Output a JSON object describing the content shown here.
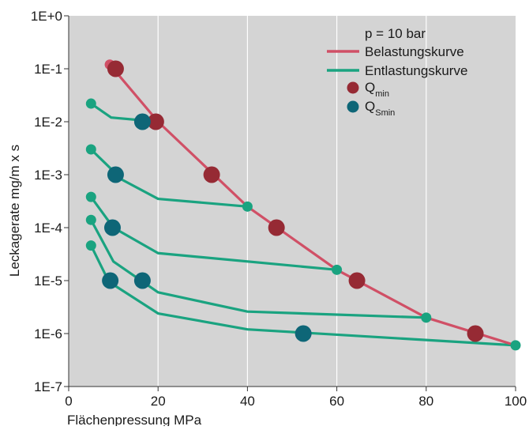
{
  "chart_data": {
    "type": "line",
    "xlabel": "Flächenpressung  MPa",
    "ylabel": "Leckagerate  mg/m x s",
    "xlim": [
      0,
      100
    ],
    "ylim_log10": [
      -7,
      0
    ],
    "y_scale": "log",
    "grid": true,
    "x_ticks": [
      "0",
      "20",
      "40",
      "60",
      "80",
      "100"
    ],
    "y_ticks": [
      "1E+0",
      "1E-1",
      "1E-2",
      "1E-3",
      "1E-4",
      "1E-5",
      "1E-6",
      "1E-7"
    ],
    "legend": {
      "placement": "top-right",
      "header": "p = 10 bar",
      "items": [
        {
          "label": "Belastungskurve",
          "kind": "line",
          "color": "#d05066"
        },
        {
          "label": "Entlastungskurve",
          "kind": "line",
          "color": "#1aa380"
        },
        {
          "label": "Q",
          "sub": "min",
          "kind": "dot",
          "color": "#962a34"
        },
        {
          "label": "Q",
          "sub": "Smin",
          "kind": "dot",
          "color": "#0e6677"
        }
      ]
    },
    "colors": {
      "belastung": "#d05066",
      "entlastung": "#1aa380",
      "qmin": "#962a34",
      "qsmin": "#0e6677",
      "plot_bg": "#d4d4d4",
      "grid": "#ffffff"
    },
    "loading_curve": {
      "name": "Belastungskurve",
      "points": [
        [
          9.2,
          0.12
        ],
        [
          20,
          0.01
        ],
        [
          40,
          0.00025
        ],
        [
          60,
          1.6e-05
        ],
        [
          80,
          2e-06
        ],
        [
          100,
          6e-07
        ]
      ]
    },
    "unloading_curves": [
      {
        "points": [
          [
            5,
            0.022
          ],
          [
            9.5,
            0.012
          ],
          [
            20,
            0.01
          ]
        ]
      },
      {
        "points": [
          [
            5,
            0.003
          ],
          [
            12,
            0.0008
          ],
          [
            20,
            0.00035
          ],
          [
            40,
            0.00025
          ]
        ]
      },
      {
        "points": [
          [
            5,
            0.00038
          ],
          [
            10,
            0.0001
          ],
          [
            20,
            3.3e-05
          ],
          [
            60,
            1.6e-05
          ]
        ]
      },
      {
        "points": [
          [
            5,
            0.00014
          ],
          [
            10,
            2.3e-05
          ],
          [
            20,
            6e-06
          ],
          [
            40,
            2.6e-06
          ],
          [
            80,
            2e-06
          ]
        ]
      },
      {
        "points": [
          [
            5,
            4.6e-05
          ],
          [
            9,
            9.5e-06
          ],
          [
            20,
            2.4e-06
          ],
          [
            40,
            1.2e-06
          ],
          [
            100,
            6e-07
          ]
        ]
      }
    ],
    "series_markers": [
      {
        "x": 9.2,
        "y": 0.12,
        "color": "#d05066",
        "size": "small"
      },
      {
        "x": 5,
        "y": 0.022,
        "color": "#1aa380",
        "size": "small"
      },
      {
        "x": 5,
        "y": 0.003,
        "color": "#1aa380",
        "size": "small"
      },
      {
        "x": 5,
        "y": 0.00038,
        "color": "#1aa380",
        "size": "small"
      },
      {
        "x": 5,
        "y": 0.00014,
        "color": "#1aa380",
        "size": "small"
      },
      {
        "x": 5,
        "y": 4.6e-05,
        "color": "#1aa380",
        "size": "small"
      },
      {
        "x": 40,
        "y": 0.00025,
        "color": "#1aa380",
        "size": "small"
      },
      {
        "x": 60,
        "y": 1.6e-05,
        "color": "#1aa380",
        "size": "small"
      },
      {
        "x": 80,
        "y": 2e-06,
        "color": "#1aa380",
        "size": "small"
      },
      {
        "x": 100,
        "y": 6e-07,
        "color": "#1aa380",
        "size": "small"
      }
    ],
    "q_min_points": [
      [
        10.5,
        0.1
      ],
      [
        19.5,
        0.01
      ],
      [
        32,
        0.001
      ],
      [
        46.5,
        0.0001
      ],
      [
        64.5,
        1e-05
      ],
      [
        91,
        1e-06
      ]
    ],
    "q_smin_points": [
      [
        16.5,
        0.01
      ],
      [
        10.5,
        0.001
      ],
      [
        9.8,
        0.0001
      ],
      [
        9.3,
        1e-05
      ],
      [
        16.5,
        1e-05
      ],
      [
        52.5,
        1e-06
      ]
    ]
  }
}
